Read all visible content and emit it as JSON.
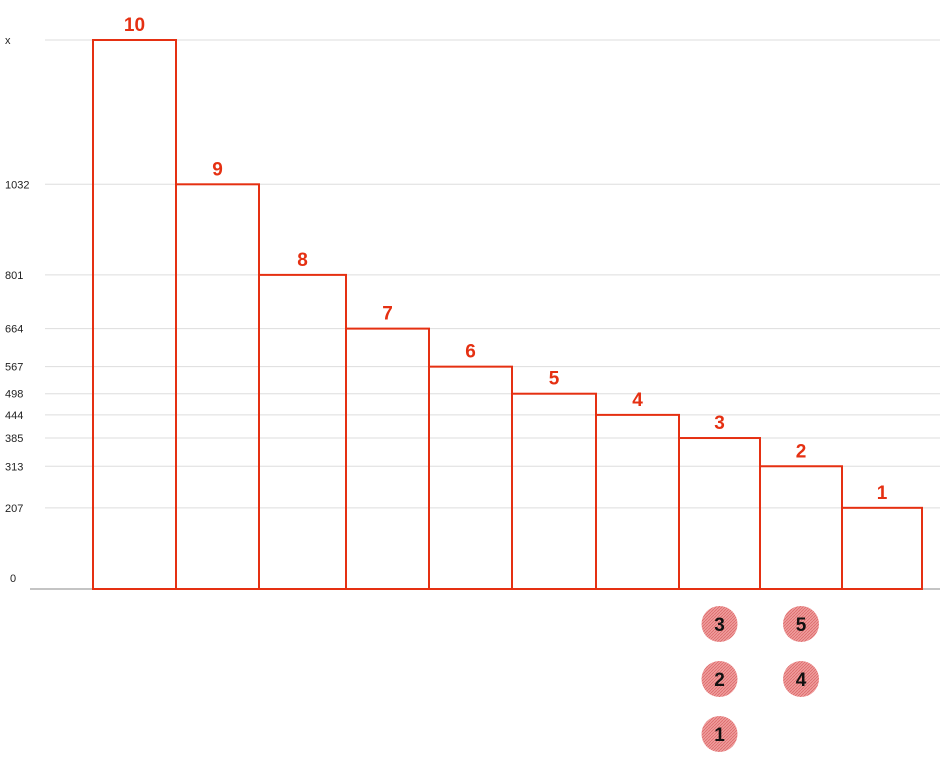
{
  "chart_data": {
    "type": "bar",
    "categories": [
      "10",
      "9",
      "8",
      "7",
      "6",
      "5",
      "4",
      "3",
      "2",
      "1"
    ],
    "values": [
      1400,
      1032,
      801,
      664,
      567,
      498,
      444,
      385,
      313,
      207
    ],
    "ytick_labels": [
      "x",
      "1032",
      "801",
      "664",
      "567",
      "498",
      "444",
      "385",
      "313",
      "207",
      "0"
    ],
    "ylim": [
      0,
      1400
    ],
    "grid": true,
    "colors": {
      "bar_stroke": "#e53012",
      "label": "#e53012",
      "grid": "#dddddd",
      "axis": "#888888",
      "bubble_fill": "#ee8a8a",
      "bubble_text": "#111111"
    },
    "bubble_columns": [
      {
        "under_bar": "3",
        "labels": [
          "3",
          "2",
          "1"
        ]
      },
      {
        "under_bar": "2",
        "labels": [
          "5",
          "4"
        ]
      }
    ]
  }
}
